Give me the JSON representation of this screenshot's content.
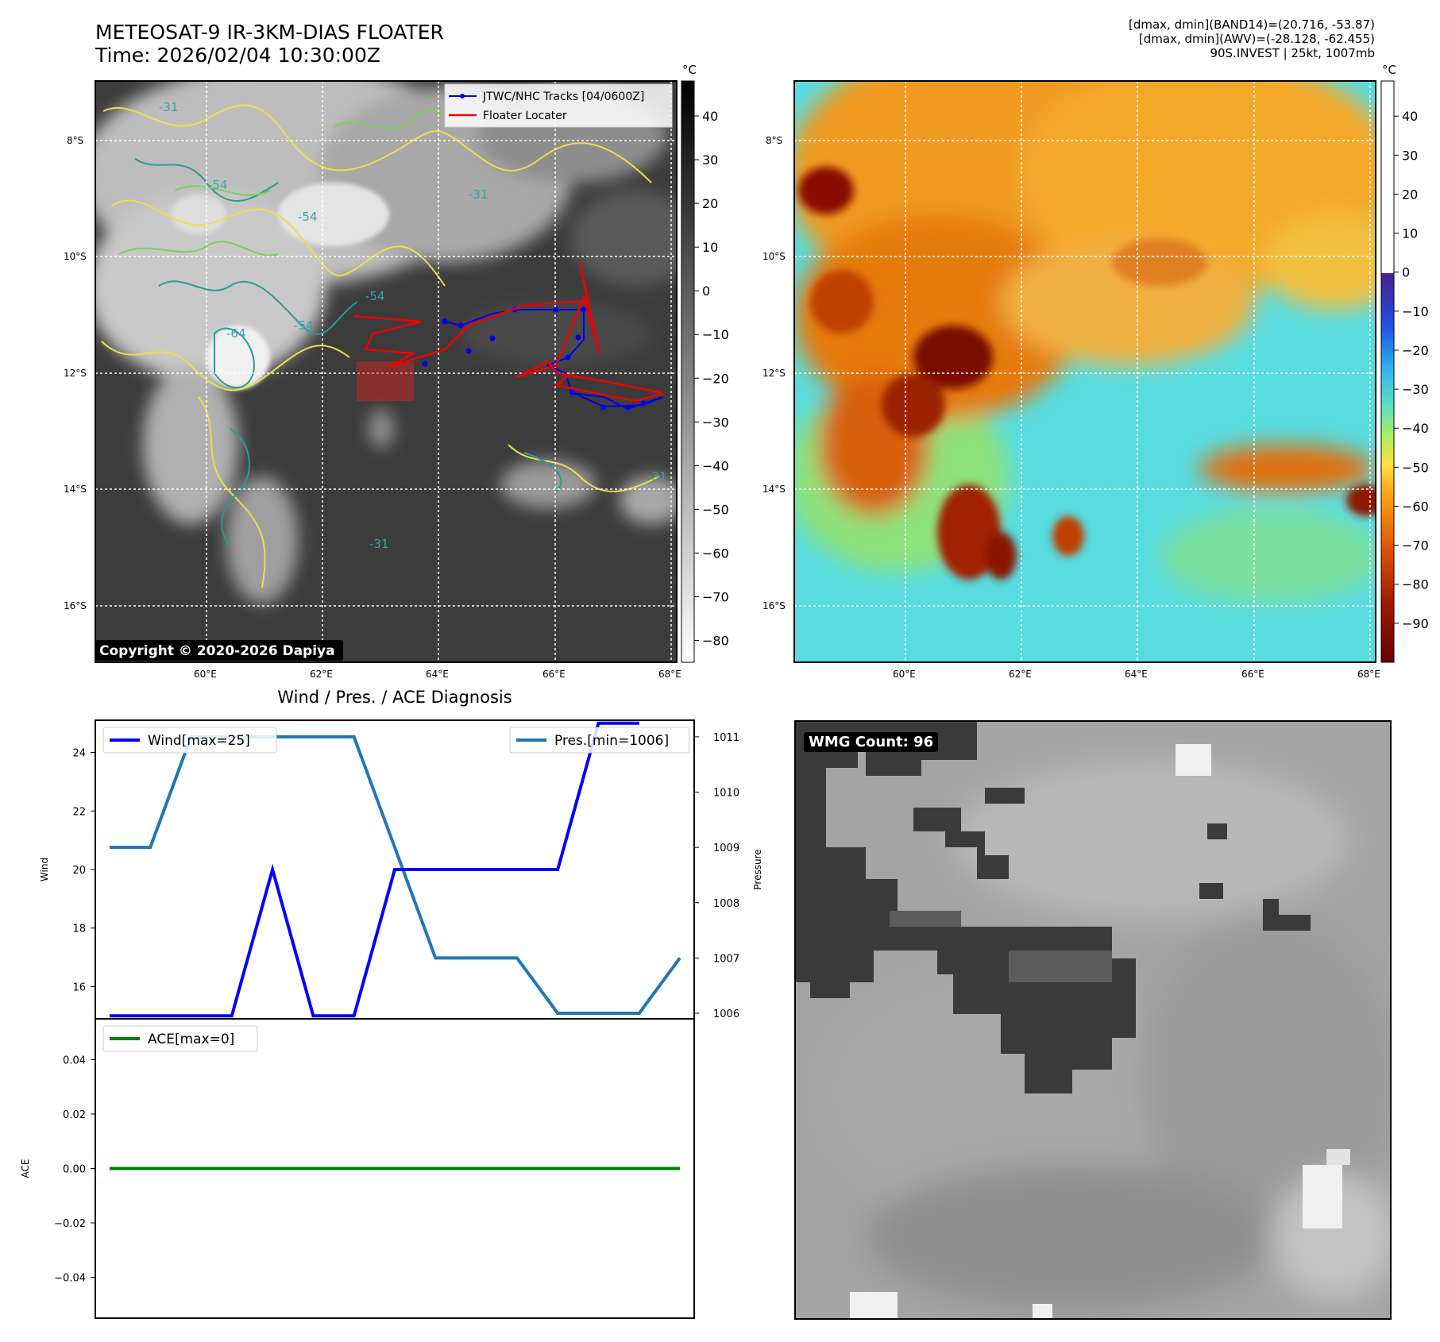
{
  "header": {
    "title_line1": "METEOSAT-9 IR-3KM-DIAS FLOATER",
    "title_line2": "Time: 2026/02/04 10:30:00Z"
  },
  "info": {
    "line1": "[dmax, dmin](BAND14)=(20.716, -53.87)",
    "line2": "[dmax, dmin](AWV)=(-28.128, -62.455)",
    "line3": "90S.INVEST | 25kt, 1007mb"
  },
  "map_axes": {
    "lon_ticks": [
      "60°E",
      "62°E",
      "64°E",
      "66°E",
      "68°E"
    ],
    "lat_ticks": [
      "8°S",
      "10°S",
      "12°S",
      "14°S",
      "16°S"
    ]
  },
  "ir_panel": {
    "legend_tracks": "JTWC/NHC Tracks [04/0600Z]",
    "legend_locator": "Floater Locater",
    "copyright": "Copyright © 2020-2026 Dapiya",
    "contour_labels": [
      "-54",
      "-54",
      "-54",
      "-64",
      "-54",
      "-31",
      "-31",
      "-31",
      "-31"
    ],
    "colorbar_unit": "°C",
    "colorbar_ticks": [
      "40",
      "30",
      "20",
      "10",
      "0",
      "−10",
      "−20",
      "−30",
      "−40",
      "−50",
      "−60",
      "−70",
      "−80"
    ],
    "track_color": "#0000ee",
    "locator_color": "#ee0000"
  },
  "awv_panel": {
    "colorbar_unit": "°C",
    "colorbar_ticks": [
      "40",
      "30",
      "20",
      "10",
      "0",
      "−10",
      "−20",
      "−30",
      "−40",
      "−50",
      "−60",
      "−70",
      "−80",
      "−90"
    ]
  },
  "wmg_panel": {
    "count_label": "WMG Count: 96"
  },
  "chart_data": [
    {
      "type": "line",
      "title": "Wind / Pres. / ACE Diagnosis",
      "x": [
        1,
        2,
        3,
        4,
        5,
        6,
        7,
        8,
        9,
        10,
        11,
        12,
        13,
        14,
        15
      ],
      "series": [
        {
          "name": "Wind[max=25]",
          "axis": "left",
          "color": "#0000ff",
          "values": [
            15,
            15,
            15,
            15,
            20,
            15,
            15,
            20,
            20,
            20,
            20,
            20,
            25,
            25,
            null
          ]
        },
        {
          "name": "Pres.[min=1006]",
          "axis": "right",
          "color": "#1f77b4",
          "values": [
            1009,
            1009,
            1011,
            1011,
            1011,
            1011,
            1011,
            1009,
            1007,
            1007,
            1007,
            1006,
            1006,
            1006,
            1007
          ]
        }
      ],
      "ylabel": "Wind",
      "ylabel_right": "Pressure",
      "ylim": [
        14.9,
        25.1
      ],
      "ylim_right": [
        1005.9,
        1011.3
      ],
      "yticks": [
        "16",
        "18",
        "20",
        "22",
        "24"
      ],
      "yticks_right": [
        "1006",
        "1007",
        "1008",
        "1009",
        "1010",
        "1011"
      ],
      "legend": [
        "top-left",
        "top-right"
      ]
    },
    {
      "type": "line",
      "x": [
        1,
        15
      ],
      "series": [
        {
          "name": "ACE[max=0]",
          "color": "#008000",
          "values": [
            0,
            0
          ]
        }
      ],
      "ylabel": "ACE",
      "ylim": [
        -0.055,
        0.055
      ],
      "yticks": [
        "0.04",
        "0.02",
        "0.00",
        "−0.02",
        "−0.04"
      ],
      "legend": "top-left"
    }
  ]
}
